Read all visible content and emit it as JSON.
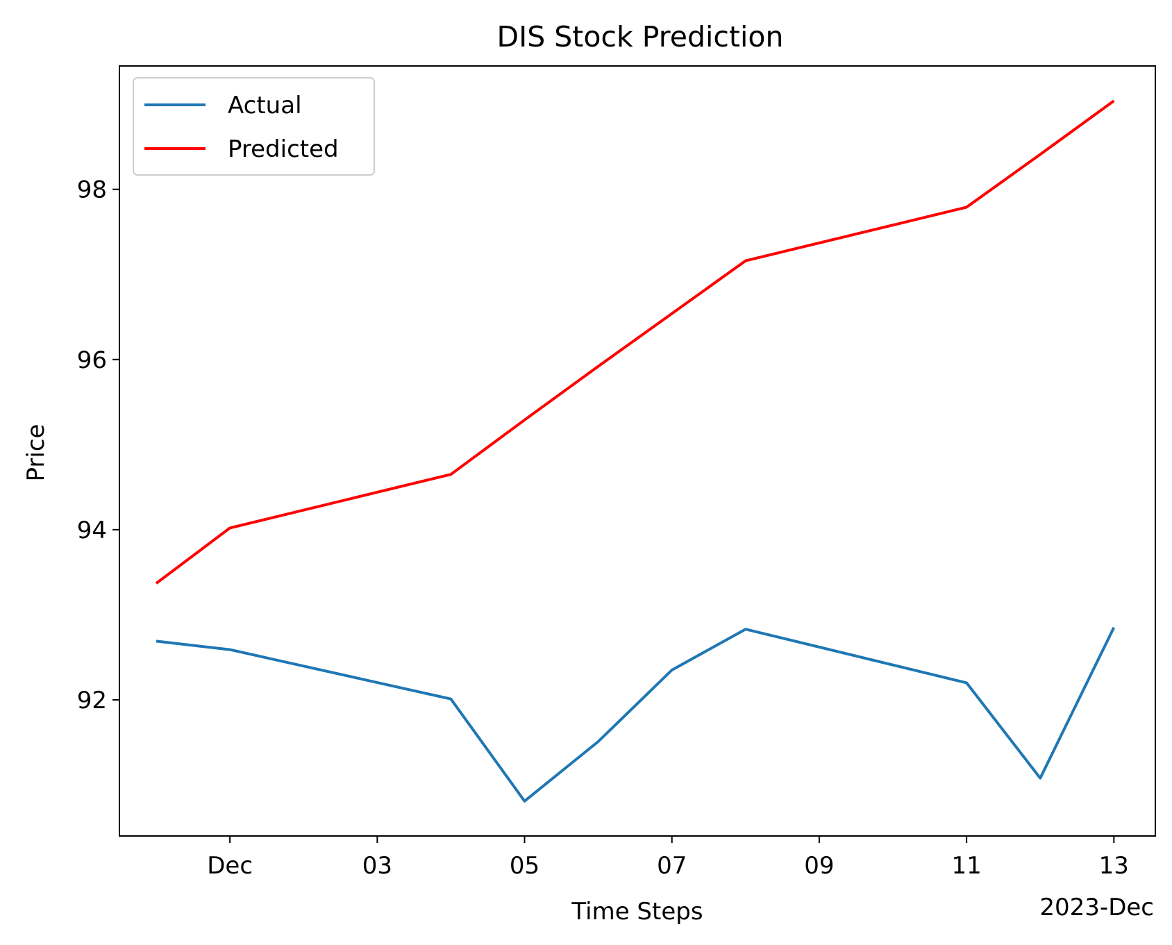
{
  "chart_data": {
    "type": "line",
    "title": "DIS Stock Prediction",
    "xlabel": "Time Steps",
    "ylabel": "Price",
    "x_offset_label": "2023-Dec",
    "x": [
      "2023-11-30",
      "2023-12-01",
      "2023-12-04",
      "2023-12-05",
      "2023-12-06",
      "2023-12-07",
      "2023-12-08",
      "2023-12-11",
      "2023-12-12",
      "2023-12-13"
    ],
    "series": [
      {
        "name": "Actual",
        "color": "#1f77b4",
        "values": [
          92.69,
          92.59,
          92.01,
          90.81,
          91.51,
          92.35,
          92.83,
          92.2,
          91.08,
          92.85
        ]
      },
      {
        "name": "Predicted",
        "color": "#ff0000",
        "values": [
          93.37,
          94.02,
          94.65,
          95.29,
          95.92,
          96.54,
          97.16,
          97.79,
          98.41,
          99.04
        ]
      }
    ],
    "xlim": [
      "2023-11-29 12:00",
      "2023-12-13 13:30"
    ],
    "ylim": [
      90.4,
      99.45
    ],
    "xticks": [
      {
        "date": "2023-12-01",
        "label": "Dec"
      },
      {
        "date": "2023-12-03",
        "label": "03"
      },
      {
        "date": "2023-12-05",
        "label": "05"
      },
      {
        "date": "2023-12-07",
        "label": "07"
      },
      {
        "date": "2023-12-09",
        "label": "09"
      },
      {
        "date": "2023-12-11",
        "label": "11"
      },
      {
        "date": "2023-12-13",
        "label": "13"
      }
    ],
    "yticks": [
      {
        "value": 92,
        "label": "92"
      },
      {
        "value": 94,
        "label": "94"
      },
      {
        "value": 96,
        "label": "96"
      },
      {
        "value": 98,
        "label": "98"
      }
    ],
    "legend_position": "upper left",
    "grid": false
  }
}
